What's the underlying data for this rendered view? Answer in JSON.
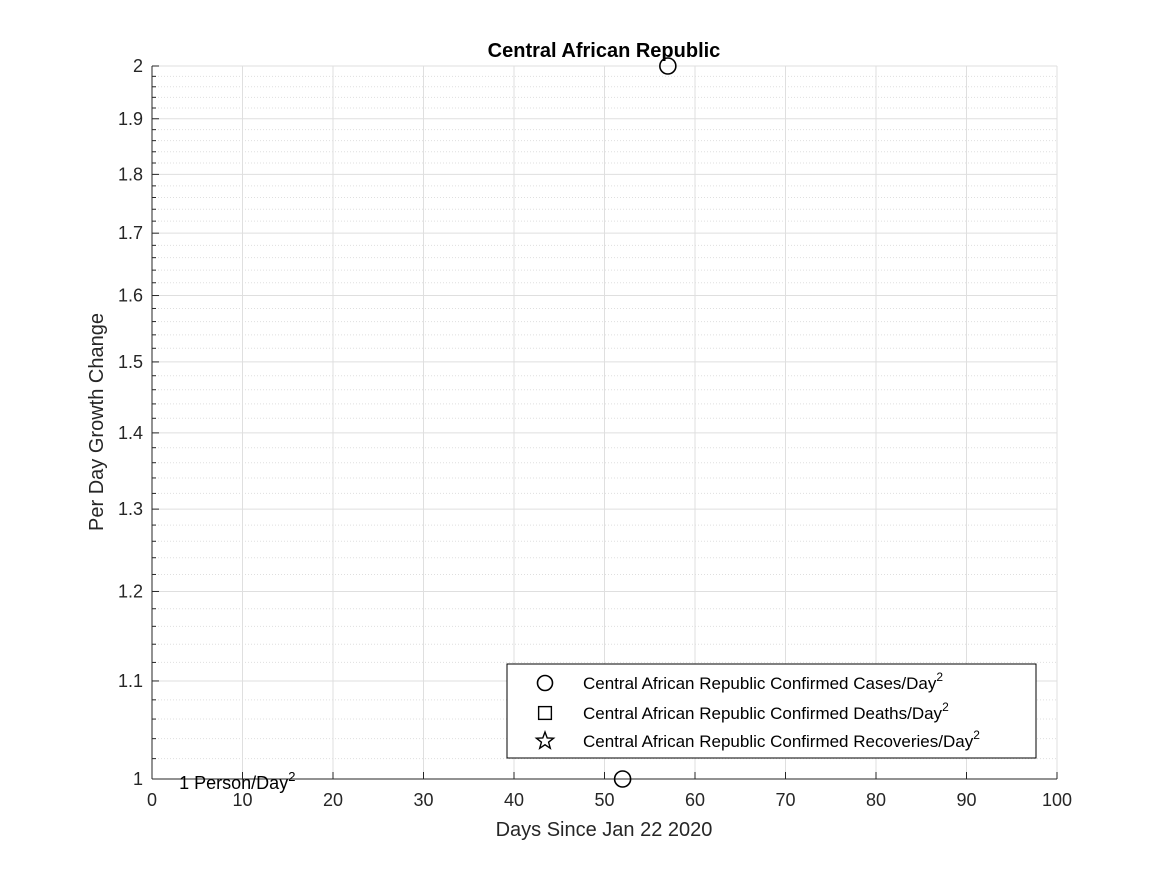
{
  "chart_data": {
    "type": "scatter",
    "title": "Central African Republic",
    "xlabel": "Days Since Jan 22 2020",
    "ylabel": "Per Day Growth Change",
    "xlim": [
      0,
      100
    ],
    "ylim": [
      1,
      2
    ],
    "yscale": "log",
    "grid": "on",
    "minor_grid": "on",
    "x_ticks": [
      0,
      10,
      20,
      30,
      40,
      50,
      60,
      70,
      80,
      90,
      100
    ],
    "y_ticks": [
      1,
      1.1,
      1.2,
      1.3,
      1.4,
      1.5,
      1.6,
      1.7,
      1.8,
      1.9,
      2
    ],
    "x_tick_labels": [
      "0",
      "10",
      "20",
      "30",
      "40",
      "50",
      "60",
      "70",
      "80",
      "90",
      "100"
    ],
    "y_tick_labels": [
      "1",
      "1.1",
      "1.2",
      "1.3",
      "1.4",
      "1.5",
      "1.6",
      "1.7",
      "1.8",
      "1.9",
      "2"
    ],
    "legend_position": "bottom-right",
    "series": [
      {
        "name": "Central African Republic Confirmed Cases/Day",
        "name_sup": "2",
        "marker": "circle",
        "points": [
          {
            "x": 52,
            "y": 1
          },
          {
            "x": 57,
            "y": 2
          }
        ]
      },
      {
        "name": "Central African Republic Confirmed Deaths/Day",
        "name_sup": "2",
        "marker": "square",
        "points": []
      },
      {
        "name": "Central African Republic Confirmed Recoveries/Day",
        "name_sup": "2",
        "marker": "star",
        "points": []
      }
    ],
    "annotations": [
      {
        "text": "1 Person/Day",
        "sup": "2",
        "x": 3,
        "y": 1
      }
    ],
    "colors": {
      "marker": "#000000",
      "grid": "#dfdfdf",
      "axis": "#262626"
    }
  }
}
